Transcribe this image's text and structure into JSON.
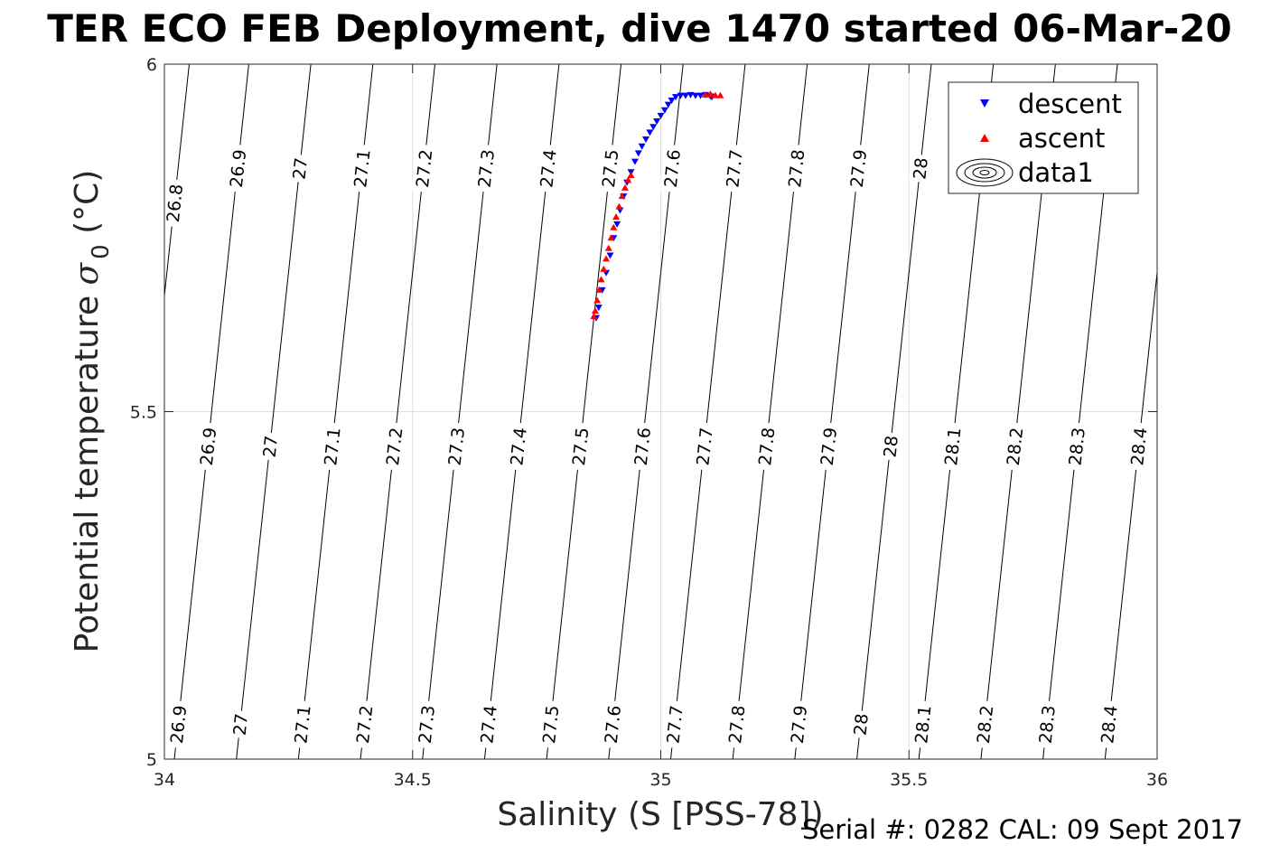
{
  "chart_data": {
    "type": "scatter",
    "title": "TER ECO FEB Deployment, dive 1470 started 06-Mar-20",
    "xlabel": "Salinity (S [PSS-78])",
    "ylabel_main": "Potential temperature ",
    "ylabel_symbol": "σ",
    "ylabel_sub": "0",
    "ylabel_unit": " (°C)",
    "xlim": [
      34,
      36
    ],
    "ylim": [
      5,
      6
    ],
    "xticks": [
      34,
      34.5,
      35,
      35.5,
      36
    ],
    "xtick_labels": [
      "34",
      "34.5",
      "35",
      "35.5",
      "36"
    ],
    "yticks": [
      5,
      5.5,
      6
    ],
    "ytick_labels": [
      "5",
      "5.5",
      "6"
    ],
    "grid": true,
    "legend_position": "top-right",
    "legend": [
      {
        "label": "descent",
        "marker": "triangle-down",
        "color": "#0000ff"
      },
      {
        "label": "ascent",
        "marker": "triangle-up",
        "color": "#ff0000"
      },
      {
        "label": "data1",
        "marker": "contour"
      }
    ],
    "series": [
      {
        "name": "descent",
        "marker": "triangle-down",
        "color": "#0000ff",
        "points": [
          [
            34.87,
            5.635
          ],
          [
            34.875,
            5.65
          ],
          [
            34.882,
            5.675
          ],
          [
            34.89,
            5.7
          ],
          [
            34.898,
            5.725
          ],
          [
            34.905,
            5.75
          ],
          [
            34.912,
            5.77
          ],
          [
            34.918,
            5.79
          ],
          [
            34.925,
            5.81
          ],
          [
            34.932,
            5.83
          ],
          [
            34.94,
            5.845
          ],
          [
            34.948,
            5.86
          ],
          [
            34.955,
            5.872
          ],
          [
            34.962,
            5.882
          ],
          [
            34.97,
            5.892
          ],
          [
            34.978,
            5.902
          ],
          [
            34.985,
            5.91
          ],
          [
            34.992,
            5.918
          ],
          [
            35.0,
            5.926
          ],
          [
            35.008,
            5.934
          ],
          [
            35.015,
            5.942
          ],
          [
            35.022,
            5.948
          ],
          [
            35.03,
            5.953
          ],
          [
            35.04,
            5.955
          ],
          [
            35.05,
            5.955
          ],
          [
            35.06,
            5.956
          ],
          [
            35.07,
            5.955
          ],
          [
            35.08,
            5.955
          ],
          [
            35.09,
            5.956
          ],
          [
            35.1,
            5.954
          ],
          [
            35.103,
            5.953
          ]
        ]
      },
      {
        "name": "ascent",
        "marker": "triangle-up",
        "color": "#ff0000",
        "points": [
          [
            34.865,
            5.637
          ],
          [
            34.868,
            5.645
          ],
          [
            34.872,
            5.66
          ],
          [
            34.876,
            5.675
          ],
          [
            34.88,
            5.69
          ],
          [
            34.885,
            5.705
          ],
          [
            34.89,
            5.72
          ],
          [
            34.895,
            5.735
          ],
          [
            34.9,
            5.75
          ],
          [
            34.905,
            5.765
          ],
          [
            34.91,
            5.78
          ],
          [
            34.916,
            5.795
          ],
          [
            34.922,
            5.81
          ],
          [
            34.928,
            5.822
          ],
          [
            34.934,
            5.833
          ],
          [
            34.94,
            5.84
          ],
          [
            35.09,
            5.956
          ],
          [
            35.1,
            5.957
          ],
          [
            35.11,
            5.955
          ],
          [
            35.12,
            5.955
          ]
        ]
      }
    ],
    "isopycnals": [
      {
        "label": "26.8",
        "s_top": 34.05,
        "s_bot": 33.9,
        "label_at": [
          [
            34.017,
            5.8
          ]
        ]
      },
      {
        "label": "26.9",
        "s_top": 34.17,
        "s_bot": 34.02,
        "label_at": [
          [
            34.125,
            5.85
          ],
          [
            34.078,
            5.45
          ],
          [
            34.03,
            5.05
          ]
        ]
      },
      {
        "label": "27",
        "s_top": 34.295,
        "s_bot": 34.145,
        "label_at": [
          [
            34.25,
            5.85
          ],
          [
            34.202,
            5.45
          ],
          [
            34.155,
            5.05
          ]
        ]
      },
      {
        "label": "27.1",
        "s_top": 34.42,
        "s_bot": 34.27,
        "label_at": [
          [
            34.375,
            5.85
          ],
          [
            34.328,
            5.45
          ],
          [
            34.28,
            5.05
          ]
        ]
      },
      {
        "label": "27.2",
        "s_top": 34.545,
        "s_bot": 34.395,
        "label_at": [
          [
            34.5,
            5.85
          ],
          [
            34.452,
            5.45
          ],
          [
            34.405,
            5.05
          ]
        ]
      },
      {
        "label": "27.3",
        "s_top": 34.67,
        "s_bot": 34.52,
        "label_at": [
          [
            34.625,
            5.85
          ],
          [
            34.577,
            5.45
          ],
          [
            34.53,
            5.05
          ]
        ]
      },
      {
        "label": "27.4",
        "s_top": 34.795,
        "s_bot": 34.645,
        "label_at": [
          [
            34.75,
            5.85
          ],
          [
            34.702,
            5.45
          ],
          [
            34.655,
            5.05
          ]
        ]
      },
      {
        "label": "27.5",
        "s_top": 34.92,
        "s_bot": 34.77,
        "label_at": [
          [
            34.875,
            5.85
          ],
          [
            34.827,
            5.45
          ],
          [
            34.78,
            5.05
          ]
        ]
      },
      {
        "label": "27.6",
        "s_top": 35.045,
        "s_bot": 34.895,
        "label_at": [
          [
            35.0,
            5.85
          ],
          [
            34.952,
            5.45
          ],
          [
            34.905,
            5.05
          ]
        ]
      },
      {
        "label": "27.7",
        "s_top": 35.17,
        "s_bot": 35.02,
        "label_at": [
          [
            35.125,
            5.85
          ],
          [
            35.077,
            5.45
          ],
          [
            35.03,
            5.05
          ]
        ]
      },
      {
        "label": "27.8",
        "s_top": 35.295,
        "s_bot": 35.145,
        "label_at": [
          [
            35.25,
            5.85
          ],
          [
            35.202,
            5.45
          ],
          [
            35.155,
            5.05
          ]
        ]
      },
      {
        "label": "27.9",
        "s_top": 35.42,
        "s_bot": 35.27,
        "label_at": [
          [
            35.375,
            5.85
          ],
          [
            35.327,
            5.45
          ],
          [
            35.28,
            5.05
          ]
        ]
      },
      {
        "label": "28",
        "s_top": 35.545,
        "s_bot": 35.395,
        "label_at": [
          [
            35.5,
            5.85
          ],
          [
            35.452,
            5.45
          ],
          [
            35.405,
            5.05
          ]
        ]
      },
      {
        "label": "28.1",
        "s_top": 35.67,
        "s_bot": 35.52,
        "label_at": [
          [
            35.577,
            5.45
          ],
          [
            35.53,
            5.05
          ]
        ]
      },
      {
        "label": "28.2",
        "s_top": 35.795,
        "s_bot": 35.645,
        "label_at": [
          [
            35.702,
            5.45
          ],
          [
            35.655,
            5.05
          ]
        ]
      },
      {
        "label": "28.3",
        "s_top": 35.92,
        "s_bot": 35.77,
        "label_at": [
          [
            35.827,
            5.45
          ],
          [
            35.78,
            5.05
          ]
        ]
      },
      {
        "label": "28.4",
        "s_top": 36.045,
        "s_bot": 35.895,
        "label_at": [
          [
            35.952,
            5.45
          ],
          [
            35.905,
            5.05
          ]
        ]
      }
    ]
  },
  "footer": {
    "serial": "Serial #: 0282  CAL: 09 Sept 2017"
  }
}
